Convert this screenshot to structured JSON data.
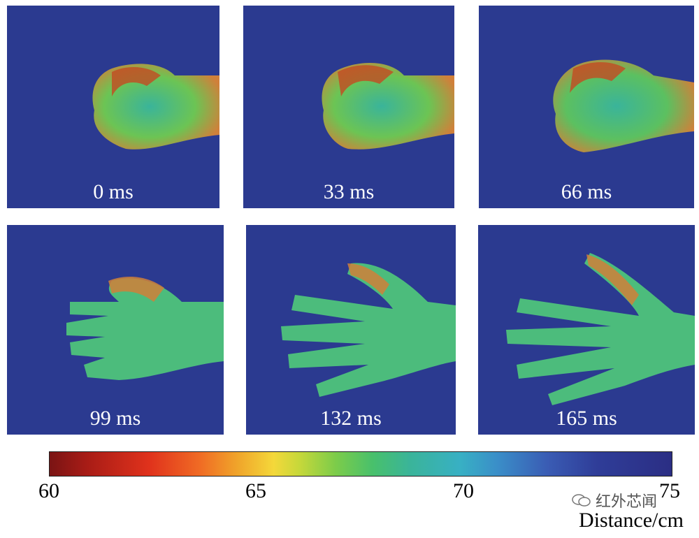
{
  "panels": [
    {
      "time_label": "0 ms",
      "gesture": "fist"
    },
    {
      "time_label": "33 ms",
      "gesture": "fist"
    },
    {
      "time_label": "66 ms",
      "gesture": "fist-opening"
    },
    {
      "time_label": "99 ms",
      "gesture": "hand-partly-open"
    },
    {
      "time_label": "132 ms",
      "gesture": "hand-open"
    },
    {
      "time_label": "165 ms",
      "gesture": "hand-open-wide"
    }
  ],
  "colorbar": {
    "ticks": [
      "60",
      "65",
      "70",
      "75"
    ],
    "unit_label": "Distance/cm",
    "colors": {
      "near": "#7a1414",
      "mid_warm": "#f0a32a",
      "mid": "#48c06c",
      "far": "#2b2e84"
    }
  },
  "watermark": {
    "text": "红外芯闻",
    "icon": "wechat-icon"
  }
}
